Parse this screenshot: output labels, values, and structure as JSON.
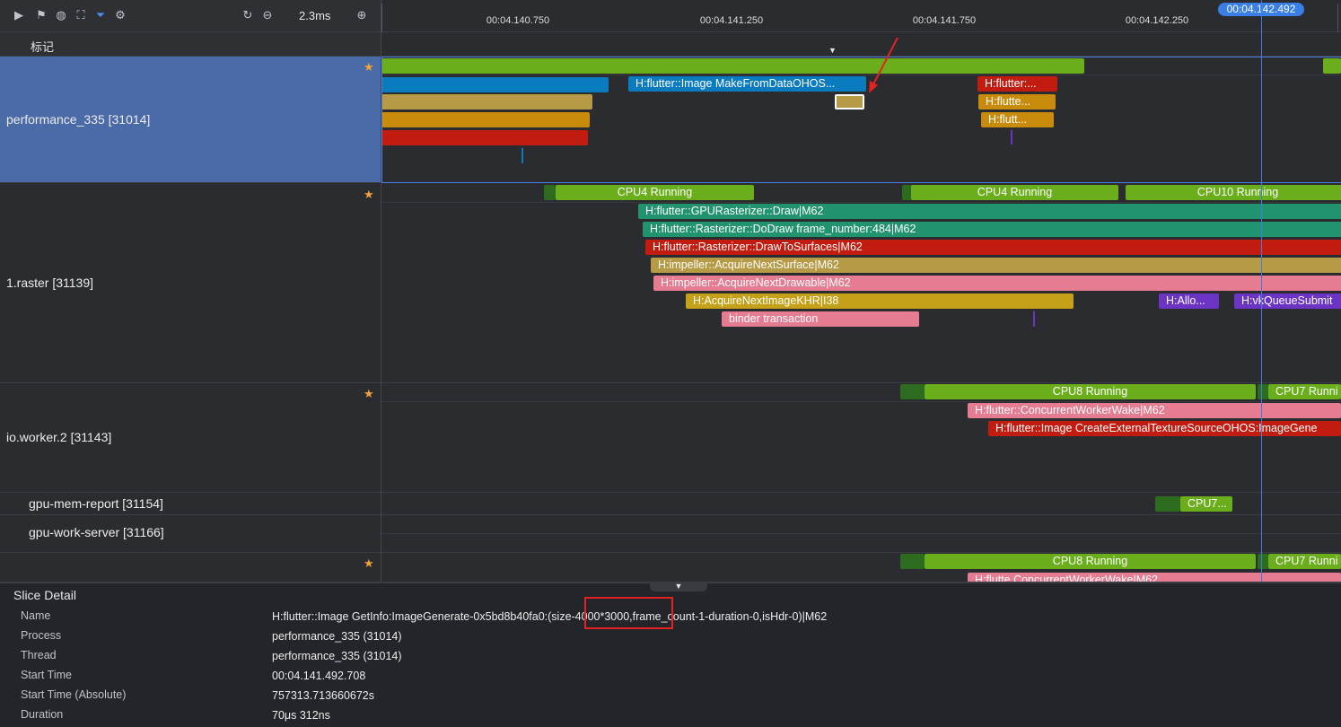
{
  "toolbar": {
    "zoom_value": "2.3ms",
    "marks_label": "标记"
  },
  "axis": {
    "ticks": [
      "00:04.140.750",
      "00:04.141.250",
      "00:04.141.750",
      "00:04.142.250"
    ],
    "cursor_time": "00:04.142.492"
  },
  "rows": {
    "r1": {
      "name": "performance_335 [31014]"
    },
    "r2": {
      "name": "1.raster [31139]"
    },
    "r3": {
      "name": "io.worker.2 [31143]"
    },
    "r4": {
      "name": "gpu-mem-report [31154]"
    },
    "r5": {
      "name": "gpu-work-server [31166]"
    }
  },
  "slices": {
    "r1_mfd": "H:flutter::Image MakeFromDataOHOS...",
    "r1_a": "H:flutter:...",
    "r1_b": "H:flutte...",
    "r1_c": "H:flutt...",
    "cpu4a": "CPU4 Running",
    "cpu4b": "CPU4 Running",
    "cpu10": "CPU10 Running",
    "gpuraster": "H:flutter::GPURasterizer::Draw|M62",
    "dodraw": "H:flutter::Rasterizer::DoDraw frame_number:484|M62",
    "drawto": "H:flutter::Rasterizer::DrawToSurfaces|M62",
    "acqsurf": "H:impeller::AcquireNextSurface|M62",
    "acqdraw": "H:impeller::AcquireNextDrawable|M62",
    "acqkhr": "H:AcquireNextImageKHR|I38",
    "alloc": "H:Allo...",
    "vkqueue": "H:vkQueueSubmit",
    "binder": "binder transaction",
    "cpu8a": "CPU8 Running",
    "cpu7a": "CPU7 Runni",
    "concwake": "H:flutter::ConcurrentWorkerWake|M62",
    "createext": "H:flutter::Image CreateExternalTextureSourceOHOS:ImageGene",
    "cpu7short": "CPU7...",
    "cpu8b": "CPU8 Running",
    "cpu7b": "CPU7 Runni",
    "concwake2": "H:flutte ConcurrentWorkerWake|M62"
  },
  "detail": {
    "title": "Slice Detail",
    "fields": [
      {
        "key": "Name",
        "value": "H:flutter::Image GetInfo:ImageGenerate-0x5bd8b40fa0:(size-4000*3000,frame_count-1-duration-0,isHdr-0)|M62"
      },
      {
        "key": "Process",
        "value": "performance_335 (31014)"
      },
      {
        "key": "Thread",
        "value": "performance_335 (31014)"
      },
      {
        "key": "Start Time",
        "value": "00:04.141.492.708"
      },
      {
        "key": "Start Time (Absolute)",
        "value": "757313.713660672s"
      },
      {
        "key": "Duration",
        "value": "70μs 312ns"
      }
    ]
  },
  "colors": {
    "green": "#6aae1c",
    "darkgreen": "#2d6b1f",
    "blue": "#0a7bbf",
    "gold": "#b69a45",
    "orange": "#c98b0c",
    "red": "#c21b0f",
    "teal": "#22936f",
    "pink": "#e57c92",
    "mustard": "#c4a118",
    "purple": "#6b34c4",
    "selection": "#4a6aa8",
    "cursor": "#3a7ee8"
  }
}
